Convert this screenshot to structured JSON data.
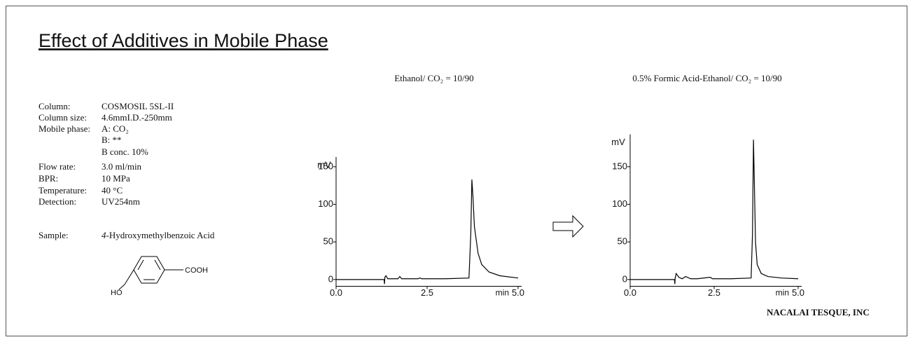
{
  "header": {
    "title": "Effect of Additives in Mobile Phase"
  },
  "conditions": [
    {
      "label": "Column:",
      "value": "COSMOSIL 5SL-II"
    },
    {
      "label": "Column size:",
      "value": "4.6mmI.D.-250mm"
    },
    {
      "label": "Mobile phase:",
      "value": "A: CO₂"
    },
    {
      "value": "B: **"
    },
    {
      "value": "B conc. 10%"
    },
    {
      "label": "Flow rate:",
      "value": "3.0 ml/min"
    },
    {
      "label": "BPR:",
      "value": "10 MPa"
    },
    {
      "label": "Temperature:",
      "value": "40 °C"
    },
    {
      "label": "Detection:",
      "value": "UV254nm"
    }
  ],
  "sample": {
    "label": "Sample:",
    "value_italic": "4",
    "value": "-Hydroxymethylbenzoic Acid"
  },
  "structure": {
    "left": "HO",
    "right": "COOH"
  },
  "footer": "NACALAI TESQUE, INC",
  "chart_data": [
    {
      "type": "line",
      "title": "Ethanol/ CO₂ = 10/90",
      "y_label": "mV",
      "x_label": "min",
      "color": "#000000",
      "x": [
        0,
        1.3,
        1.32,
        1.33,
        1.34,
        1.37,
        1.42,
        1.5,
        1.7,
        1.75,
        1.8,
        2.25,
        2.3,
        2.35,
        3.0,
        3.65,
        3.7,
        3.73,
        3.76,
        3.8,
        3.9,
        4.0,
        4.2,
        4.5,
        5.0
      ],
      "values": [
        0,
        0,
        0,
        -6,
        3,
        5,
        1,
        1,
        1,
        4,
        1,
        1,
        2,
        1,
        1,
        2,
        60,
        133,
        110,
        70,
        35,
        20,
        10,
        5,
        2
      ],
      "xlim": [
        0,
        5.0
      ],
      "ylim": [
        -9,
        163
      ],
      "xticks": [
        {
          "value": 0,
          "label": "0.0"
        },
        {
          "value": 2.5,
          "label": "2.5"
        },
        {
          "value": 5,
          "label": "5.0"
        }
      ],
      "yticks": [
        0,
        50,
        100,
        150
      ]
    },
    {
      "type": "line",
      "title": "0.5% Formic Acid-Ethanol/ CO₂ = 10/90",
      "y_label": "mV",
      "x_label": "min",
      "color": "#000000",
      "x": [
        0,
        1.3,
        1.32,
        1.33,
        1.34,
        1.37,
        1.45,
        1.55,
        1.65,
        1.8,
        2.0,
        2.38,
        2.45,
        3.0,
        3.6,
        3.64,
        3.67,
        3.7,
        3.73,
        3.78,
        3.9,
        4.1,
        4.5,
        5.0
      ],
      "values": [
        0,
        0,
        0,
        -6,
        2,
        8,
        3,
        1,
        4,
        1,
        1,
        3,
        1,
        1,
        2,
        60,
        186,
        120,
        50,
        20,
        8,
        4,
        2,
        1
      ],
      "xlim": [
        0,
        5.0
      ],
      "ylim": [
        -9,
        193
      ],
      "xticks": [
        {
          "value": 0,
          "label": "0.0"
        },
        {
          "value": 2.5,
          "label": "2.5"
        },
        {
          "value": 5,
          "label": "5.0"
        }
      ],
      "yticks": [
        0,
        50,
        100,
        150
      ]
    }
  ]
}
